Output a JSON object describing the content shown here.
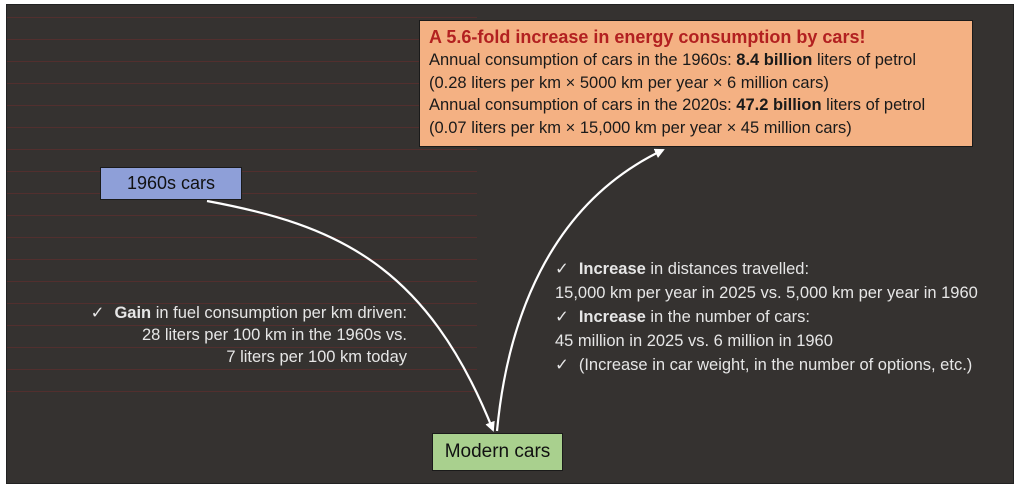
{
  "boxes": {
    "cars_1960s": "1960s cars",
    "modern_cars": "Modern cars"
  },
  "energy_box": {
    "title": "A 5.6-fold increase in energy consumption by cars!",
    "line1_prefix": "Annual consumption of cars in the 1960s: ",
    "line1_value": "8.4 billion",
    "line1_suffix": " liters of petrol",
    "line2": "(0.28 liters per km × 5000 km per year × 6 million cars)",
    "line3_prefix": "Annual consumption of cars in the 2020s: ",
    "line3_value": "47.2 billion",
    "line3_suffix": " liters of petrol",
    "line4": "(0.07 liters per km × 15,000 km per year × 45 million cars)"
  },
  "left_note": {
    "check": "✓",
    "bold": "Gain",
    "line1": " in fuel consumption per km driven:",
    "line2": "28 liters per 100 km in the 1960s vs.",
    "line3": "7 liters per 100 km today"
  },
  "right_notes": {
    "check": "✓",
    "item1_bold": "Increase",
    "item1_text": " in distances travelled:",
    "item1_detail": "15,000 km per year in 2025 vs. 5,000 km per year in 1960",
    "item2_bold": "Increase",
    "item2_text": " in the number of cars:",
    "item2_detail": "45 million in 2025 vs. 6 million in 1960",
    "item3_text": "(Increase in car weight, in the number of options, etc.)"
  },
  "colors": {
    "background": "#353230",
    "box_1960s": "#8e9fd8",
    "box_modern": "#a9d08e",
    "box_energy": "#f4b183",
    "title_red": "#b22020",
    "arrow": "#ffffff"
  }
}
